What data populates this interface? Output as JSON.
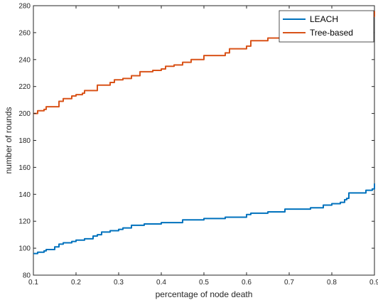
{
  "chart_data": {
    "type": "line",
    "title": "",
    "xlabel": "percentage of node death",
    "ylabel": "number of rounds",
    "xlim": [
      0.1,
      0.9
    ],
    "ylim": [
      80,
      280
    ],
    "xticks": [
      0.1,
      0.2,
      0.3,
      0.4,
      0.5,
      0.6,
      0.7,
      0.8,
      0.9
    ],
    "xtick_labels": [
      "0.1",
      "0.2",
      "0.3",
      "0.4",
      "0.5",
      "0.6",
      "0.7",
      "0.8",
      "0.9"
    ],
    "yticks": [
      80,
      100,
      120,
      140,
      160,
      180,
      200,
      220,
      240,
      260,
      280
    ],
    "ytick_labels": [
      "80",
      "100",
      "120",
      "140",
      "160",
      "180",
      "200",
      "220",
      "240",
      "260",
      "280"
    ],
    "grid": false,
    "legend_position": "top-right",
    "series": [
      {
        "name": "LEACH",
        "color": "#0072BD",
        "x": [
          0.1,
          0.11,
          0.125,
          0.13,
          0.15,
          0.16,
          0.17,
          0.19,
          0.2,
          0.22,
          0.24,
          0.25,
          0.26,
          0.28,
          0.3,
          0.31,
          0.33,
          0.36,
          0.4,
          0.45,
          0.5,
          0.55,
          0.6,
          0.61,
          0.65,
          0.69,
          0.75,
          0.78,
          0.8,
          0.82,
          0.83,
          0.835,
          0.84,
          0.88,
          0.895,
          0.9
        ],
        "y": [
          96,
          97,
          98,
          99,
          101,
          103,
          104,
          105,
          106,
          107,
          109,
          110,
          112,
          113,
          114,
          115,
          117,
          118,
          119,
          121,
          122,
          123,
          125,
          126,
          127,
          129,
          130,
          132,
          133,
          134,
          136,
          137,
          141,
          143,
          144,
          148
        ]
      },
      {
        "name": "Tree-based",
        "color": "#D95319",
        "x": [
          0.1,
          0.11,
          0.125,
          0.13,
          0.16,
          0.17,
          0.19,
          0.2,
          0.215,
          0.22,
          0.25,
          0.28,
          0.29,
          0.31,
          0.33,
          0.35,
          0.38,
          0.4,
          0.41,
          0.43,
          0.45,
          0.47,
          0.5,
          0.55,
          0.56,
          0.6,
          0.61,
          0.65,
          0.7,
          0.75,
          0.8,
          0.85,
          0.9
        ],
        "y": [
          200,
          202,
          203,
          205,
          209,
          211,
          213,
          214,
          215,
          217,
          221,
          223,
          225,
          226,
          228,
          231,
          232,
          233,
          235,
          236,
          238,
          240,
          243,
          245,
          248,
          250,
          254,
          256,
          260,
          264,
          268,
          272,
          276
        ]
      }
    ]
  }
}
